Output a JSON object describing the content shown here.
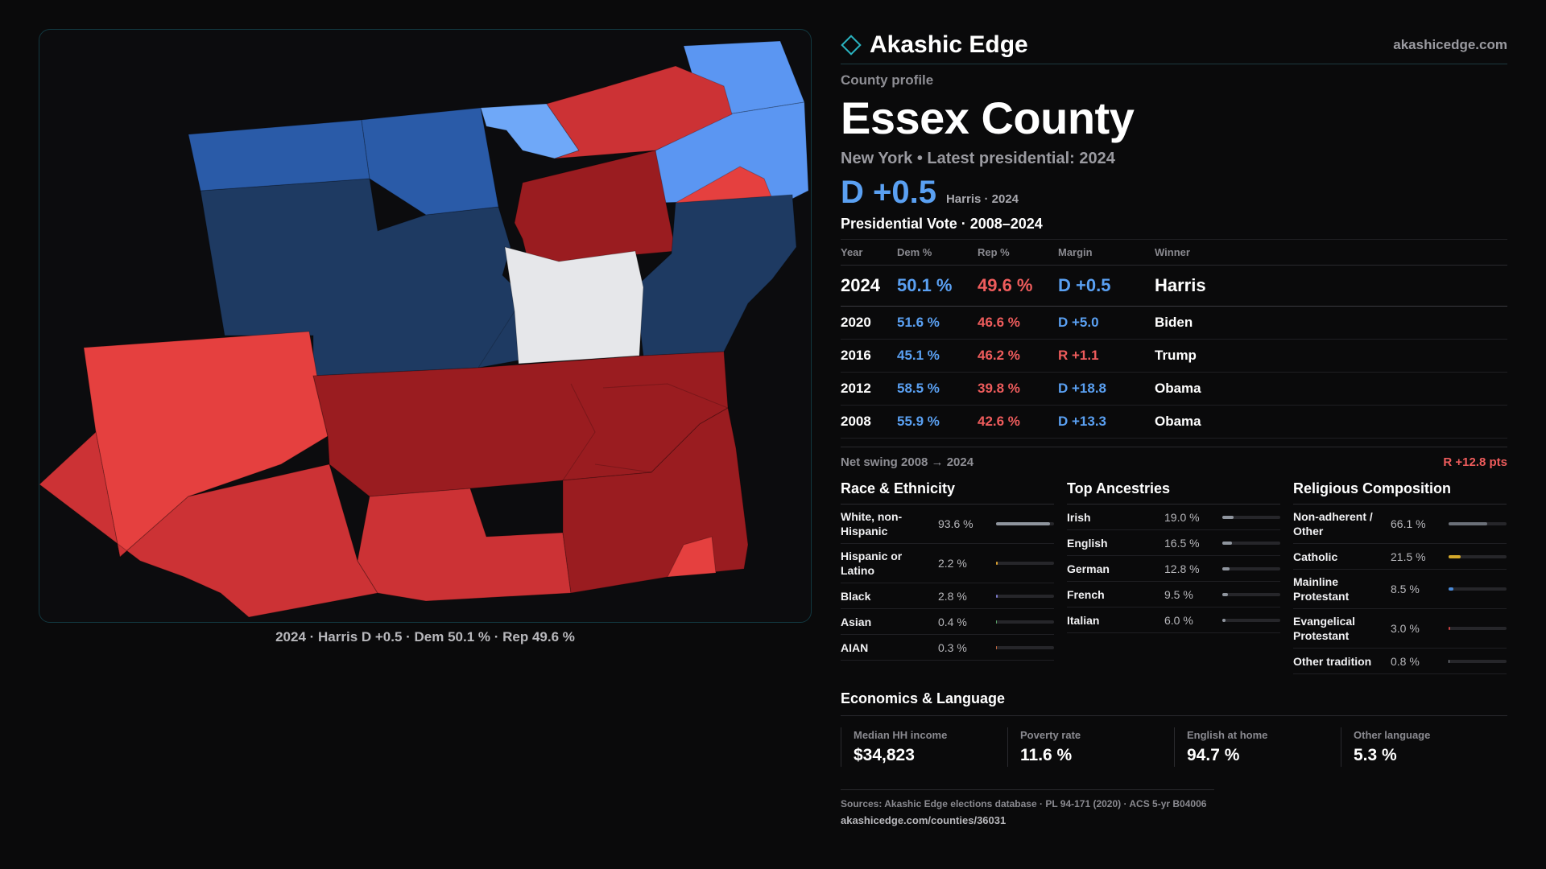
{
  "brand": {
    "name": "Akashic Edge",
    "url": "akashicedge.com",
    "accent": "#2ab3c0"
  },
  "profile": {
    "eyebrow": "County profile",
    "county": "Essex County",
    "subline": "New York  • Latest presidential: 2024",
    "headline_margin": "D +0.5",
    "headline_sub": "Harris · 2024"
  },
  "map": {
    "caption": "2024 · Harris D +0.5 · Dem 50.1 % · Rep 49.6 %",
    "colors": {
      "dem_strong": "#1e3a62",
      "dem_mid": "#2a5ba8",
      "dem_light": "#5b96f2",
      "dem_pale": "#6fa8f8",
      "rep_strong": "#9a1c20",
      "rep_mid": "#cc3235",
      "rep_light": "#e5403f",
      "tossup": "#e6e7ea"
    }
  },
  "votes": {
    "title": "Presidential Vote · 2008–2024",
    "headers": {
      "year": "Year",
      "dem": "Dem %",
      "rep": "Rep %",
      "margin": "Margin",
      "winner": "Winner"
    },
    "rows": [
      {
        "year": "2024",
        "dem": "50.1 %",
        "rep": "49.6 %",
        "margin": "D +0.5",
        "party": "D",
        "winner": "Harris"
      },
      {
        "year": "2020",
        "dem": "51.6 %",
        "rep": "46.6 %",
        "margin": "D +5.0",
        "party": "D",
        "winner": "Biden"
      },
      {
        "year": "2016",
        "dem": "45.1 %",
        "rep": "46.2 %",
        "margin": "R +1.1",
        "party": "R",
        "winner": "Trump"
      },
      {
        "year": "2012",
        "dem": "58.5 %",
        "rep": "39.8 %",
        "margin": "D +18.8",
        "party": "D",
        "winner": "Obama"
      },
      {
        "year": "2008",
        "dem": "55.9 %",
        "rep": "42.6 %",
        "margin": "D +13.3",
        "party": "D",
        "winner": "Obama"
      }
    ],
    "swing_label": "Net swing 2008 → 2024",
    "swing_value": "R +12.8 pts"
  },
  "race": {
    "title": "Race & Ethnicity",
    "rows": [
      {
        "label": "White, non-Hispanic",
        "value": "93.6 %",
        "pct": 93.6,
        "color": "#8f959e"
      },
      {
        "label": "Hispanic or Latino",
        "value": "2.2 %",
        "pct": 2.2,
        "color": "#d9a030"
      },
      {
        "label": "Black",
        "value": "2.8 %",
        "pct": 2.8,
        "color": "#7a78c8"
      },
      {
        "label": "Asian",
        "value": "0.4 %",
        "pct": 0.4,
        "color": "#5aa86a"
      },
      {
        "label": "AIAN",
        "value": "0.3 %",
        "pct": 0.3,
        "color": "#c86a40"
      }
    ]
  },
  "ancestry": {
    "title": "Top Ancestries",
    "rows": [
      {
        "label": "Irish",
        "value": "19.0 %",
        "pct": 19.0,
        "color": "#8f959e"
      },
      {
        "label": "English",
        "value": "16.5 %",
        "pct": 16.5,
        "color": "#8f959e"
      },
      {
        "label": "German",
        "value": "12.8 %",
        "pct": 12.8,
        "color": "#8f959e"
      },
      {
        "label": "French",
        "value": "9.5 %",
        "pct": 9.5,
        "color": "#8f959e"
      },
      {
        "label": "Italian",
        "value": "6.0 %",
        "pct": 6.0,
        "color": "#8f959e"
      }
    ]
  },
  "religion": {
    "title": "Religious Composition",
    "rows": [
      {
        "label": "Non-adherent / Other",
        "value": "66.1 %",
        "pct": 66.1,
        "color": "#6b7079"
      },
      {
        "label": "Catholic",
        "value": "21.5 %",
        "pct": 21.5,
        "color": "#d4a82a"
      },
      {
        "label": "Mainline Protestant",
        "value": "8.5 %",
        "pct": 8.5,
        "color": "#4a8ad8"
      },
      {
        "label": "Evangelical Protestant",
        "value": "3.0 %",
        "pct": 3.0,
        "color": "#c84040"
      },
      {
        "label": "Other tradition",
        "value": "0.8 %",
        "pct": 0.8,
        "color": "#8f959e"
      }
    ]
  },
  "economics": {
    "title": "Economics & Language",
    "cells": [
      {
        "label": "Median HH income",
        "value": "$34,823"
      },
      {
        "label": "Poverty rate",
        "value": "11.6 %"
      },
      {
        "label": "English at home",
        "value": "94.7 %"
      },
      {
        "label": "Other language",
        "value": "5.3 %"
      }
    ]
  },
  "sources": {
    "line": "Sources: Akashic Edge elections database · PL 94-171 (2020) · ACS 5-yr B04006",
    "url": "akashicedge.com/counties/36031"
  }
}
